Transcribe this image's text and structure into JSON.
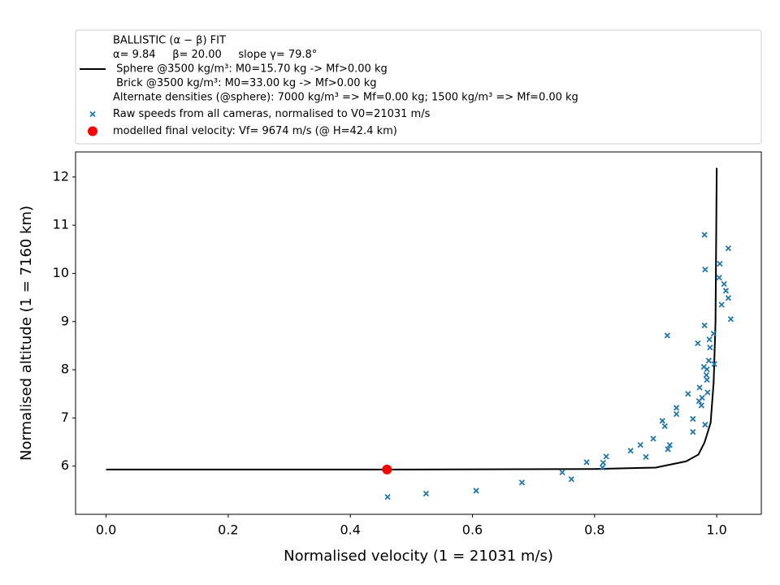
{
  "chart_data": {
    "type": "line",
    "xlabel": "Normalised velocity (1 = 21031 m/s)",
    "ylabel": "Normalised altitude (1 = 7160 km)",
    "xlim": [
      -0.05,
      1.073
    ],
    "ylim": [
      5.0,
      12.52
    ],
    "xticks": [
      {
        "value": 0,
        "label": "0.0"
      },
      {
        "value": 0.2,
        "label": "0.2"
      },
      {
        "value": 0.4,
        "label": "0.4"
      },
      {
        "value": 0.6,
        "label": "0.6"
      },
      {
        "value": 0.8,
        "label": "0.8"
      },
      {
        "value": 1,
        "label": "1.0"
      }
    ],
    "yticks": [
      6,
      7,
      8,
      9,
      10,
      11,
      12
    ],
    "grid": false,
    "legend": "above",
    "series": [
      {
        "type": "line",
        "name": [
          "BALLISTIC (α − β) FIT",
          "α= 9.84     β= 20.00     slope γ= 79.8°",
          " Sphere @3500 kg/m³: M0=15.70 kg -> Mf>0.00 kg",
          " Brick @3500 kg/m³: M0=33.00 kg -> Mf>0.00 kg",
          "Alternate densities (@sphere): 7000 kg/m³ => Mf=0.00 kg; 1500 kg/m³ => Mf=0.00 kg"
        ],
        "color": "#000000",
        "x": [
          0,
          0.5,
          0.8,
          0.9,
          0.95,
          0.97,
          0.98,
          0.99,
          0.995,
          0.998,
          1.0
        ],
        "values": [
          5.93,
          5.93,
          5.94,
          5.97,
          6.1,
          6.24,
          6.49,
          6.9,
          7.75,
          9.0,
          12.19
        ]
      },
      {
        "type": "scatter",
        "name": "Raw speeds from all cameras, normalised to V0=21031 m/s",
        "color": "#1f77b4",
        "x": [
          0.461,
          0.524,
          0.606,
          0.681,
          0.747,
          0.762,
          0.787,
          0.813,
          0.814,
          0.819,
          0.859,
          0.875,
          0.884,
          0.896,
          0.911,
          0.915,
          0.92,
          0.923,
          0.919,
          0.934,
          0.934,
          0.953,
          0.961,
          0.961,
          0.969,
          0.971,
          0.972,
          0.975,
          0.976,
          0.979,
          0.98,
          0.98,
          0.981,
          0.981,
          0.983,
          0.984,
          0.984,
          0.985,
          0.987,
          0.988,
          0.989,
          0.995,
          0.996,
          1.004,
          1.005,
          1.008,
          1.012,
          1.015,
          1.019,
          1.019,
          1.023
        ],
        "values": [
          5.36,
          5.43,
          5.49,
          5.66,
          5.87,
          5.73,
          6.08,
          5.97,
          6.07,
          6.2,
          6.32,
          6.44,
          6.19,
          6.57,
          6.94,
          6.83,
          6.35,
          6.44,
          8.71,
          7.21,
          7.08,
          7.5,
          6.98,
          6.71,
          8.55,
          7.35,
          7.63,
          7.26,
          7.42,
          8.06,
          8.92,
          10.8,
          10.08,
          6.86,
          7.89,
          8.01,
          7.79,
          7.53,
          8.19,
          8.63,
          8.46,
          8.75,
          8.12,
          9.91,
          10.2,
          9.35,
          9.78,
          9.64,
          9.49,
          10.52,
          9.05
        ]
      },
      {
        "type": "point",
        "name": "modelled final velocity: Vf= 9674 m/s (@ H=42.4 km)",
        "color": "#ff0000",
        "x": [
          0.46
        ],
        "values": [
          5.93
        ]
      }
    ]
  }
}
